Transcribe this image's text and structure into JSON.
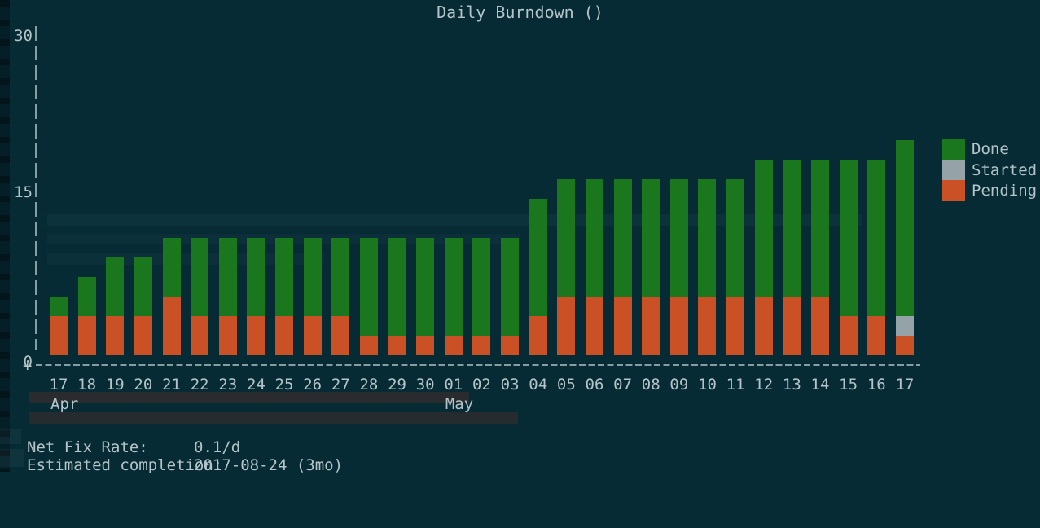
{
  "window": {
    "title": "Daily Burndown ()"
  },
  "colors": {
    "background": "#062b35",
    "text": "#b5c4c8",
    "axis": "#9db1b6",
    "done": "#1b771d",
    "started": "#95a3a9",
    "pending": "#ca5026"
  },
  "chart_data": {
    "type": "bar",
    "stacked": true,
    "title": "Daily Burndown ()",
    "xlabel": "",
    "ylabel": "",
    "ylim": [
      0,
      30
    ],
    "grid": false,
    "legend_position": "right",
    "axis_corner_glyph": "+",
    "yticks": [
      {
        "label": "30",
        "value": 30
      },
      {
        "label": "15",
        "value": 15
      },
      {
        "label": "0",
        "value": 0
      }
    ],
    "categories": [
      "Apr 17",
      "Apr 18",
      "Apr 19",
      "Apr 20",
      "Apr 21",
      "Apr 22",
      "Apr 23",
      "Apr 24",
      "Apr 25",
      "Apr 26",
      "Apr 27",
      "Apr 28",
      "Apr 29",
      "Apr 30",
      "May 01",
      "May 02",
      "May 03",
      "May 04",
      "May 05",
      "May 06",
      "May 07",
      "May 08",
      "May 09",
      "May 10",
      "May 11",
      "May 12",
      "May 13",
      "May 14",
      "May 15",
      "May 16",
      "May 17"
    ],
    "x_tick_labels": [
      "17",
      "18",
      "19",
      "20",
      "21",
      "22",
      "23",
      "24",
      "25",
      "26",
      "27",
      "28",
      "29",
      "30",
      "01",
      "02",
      "03",
      "04",
      "05",
      "06",
      "07",
      "08",
      "09",
      "10",
      "11",
      "12",
      "13",
      "14",
      "15",
      "16",
      "17"
    ],
    "month_row": [
      {
        "label": "Apr",
        "index": 0
      },
      {
        "label": "May",
        "index": 14
      }
    ],
    "series": [
      {
        "name": "Done",
        "color": "#1b771d",
        "values": [
          2,
          3,
          5,
          5,
          6,
          7,
          7,
          7,
          7,
          7,
          7,
          9,
          9,
          9,
          9,
          9,
          9,
          10,
          11,
          11,
          11,
          11,
          11,
          11,
          11,
          13,
          13,
          13,
          14,
          14,
          16
        ]
      },
      {
        "name": "Started",
        "color": "#95a3a9",
        "values": [
          0,
          0,
          0,
          0,
          0,
          0,
          0,
          0,
          0,
          0,
          0,
          0,
          0,
          0,
          0,
          0,
          0,
          0,
          0,
          0,
          0,
          0,
          0,
          0,
          0,
          0,
          0,
          0,
          0,
          0,
          2
        ]
      },
      {
        "name": "Pending",
        "color": "#ca5026",
        "values": [
          4,
          4,
          4,
          4,
          5,
          4,
          4,
          4,
          4,
          4,
          4,
          2,
          2,
          2,
          2,
          2,
          2,
          4,
          5,
          5,
          5,
          5,
          5,
          5,
          5,
          5,
          5,
          5,
          4,
          4,
          2
        ]
      }
    ]
  },
  "footer": {
    "net_fix_rate_label": "Net Fix Rate:",
    "net_fix_rate_value": "0.1/d",
    "completion_label": "Estimated completion:",
    "completion_value": "2017-08-24 (3mo)"
  }
}
